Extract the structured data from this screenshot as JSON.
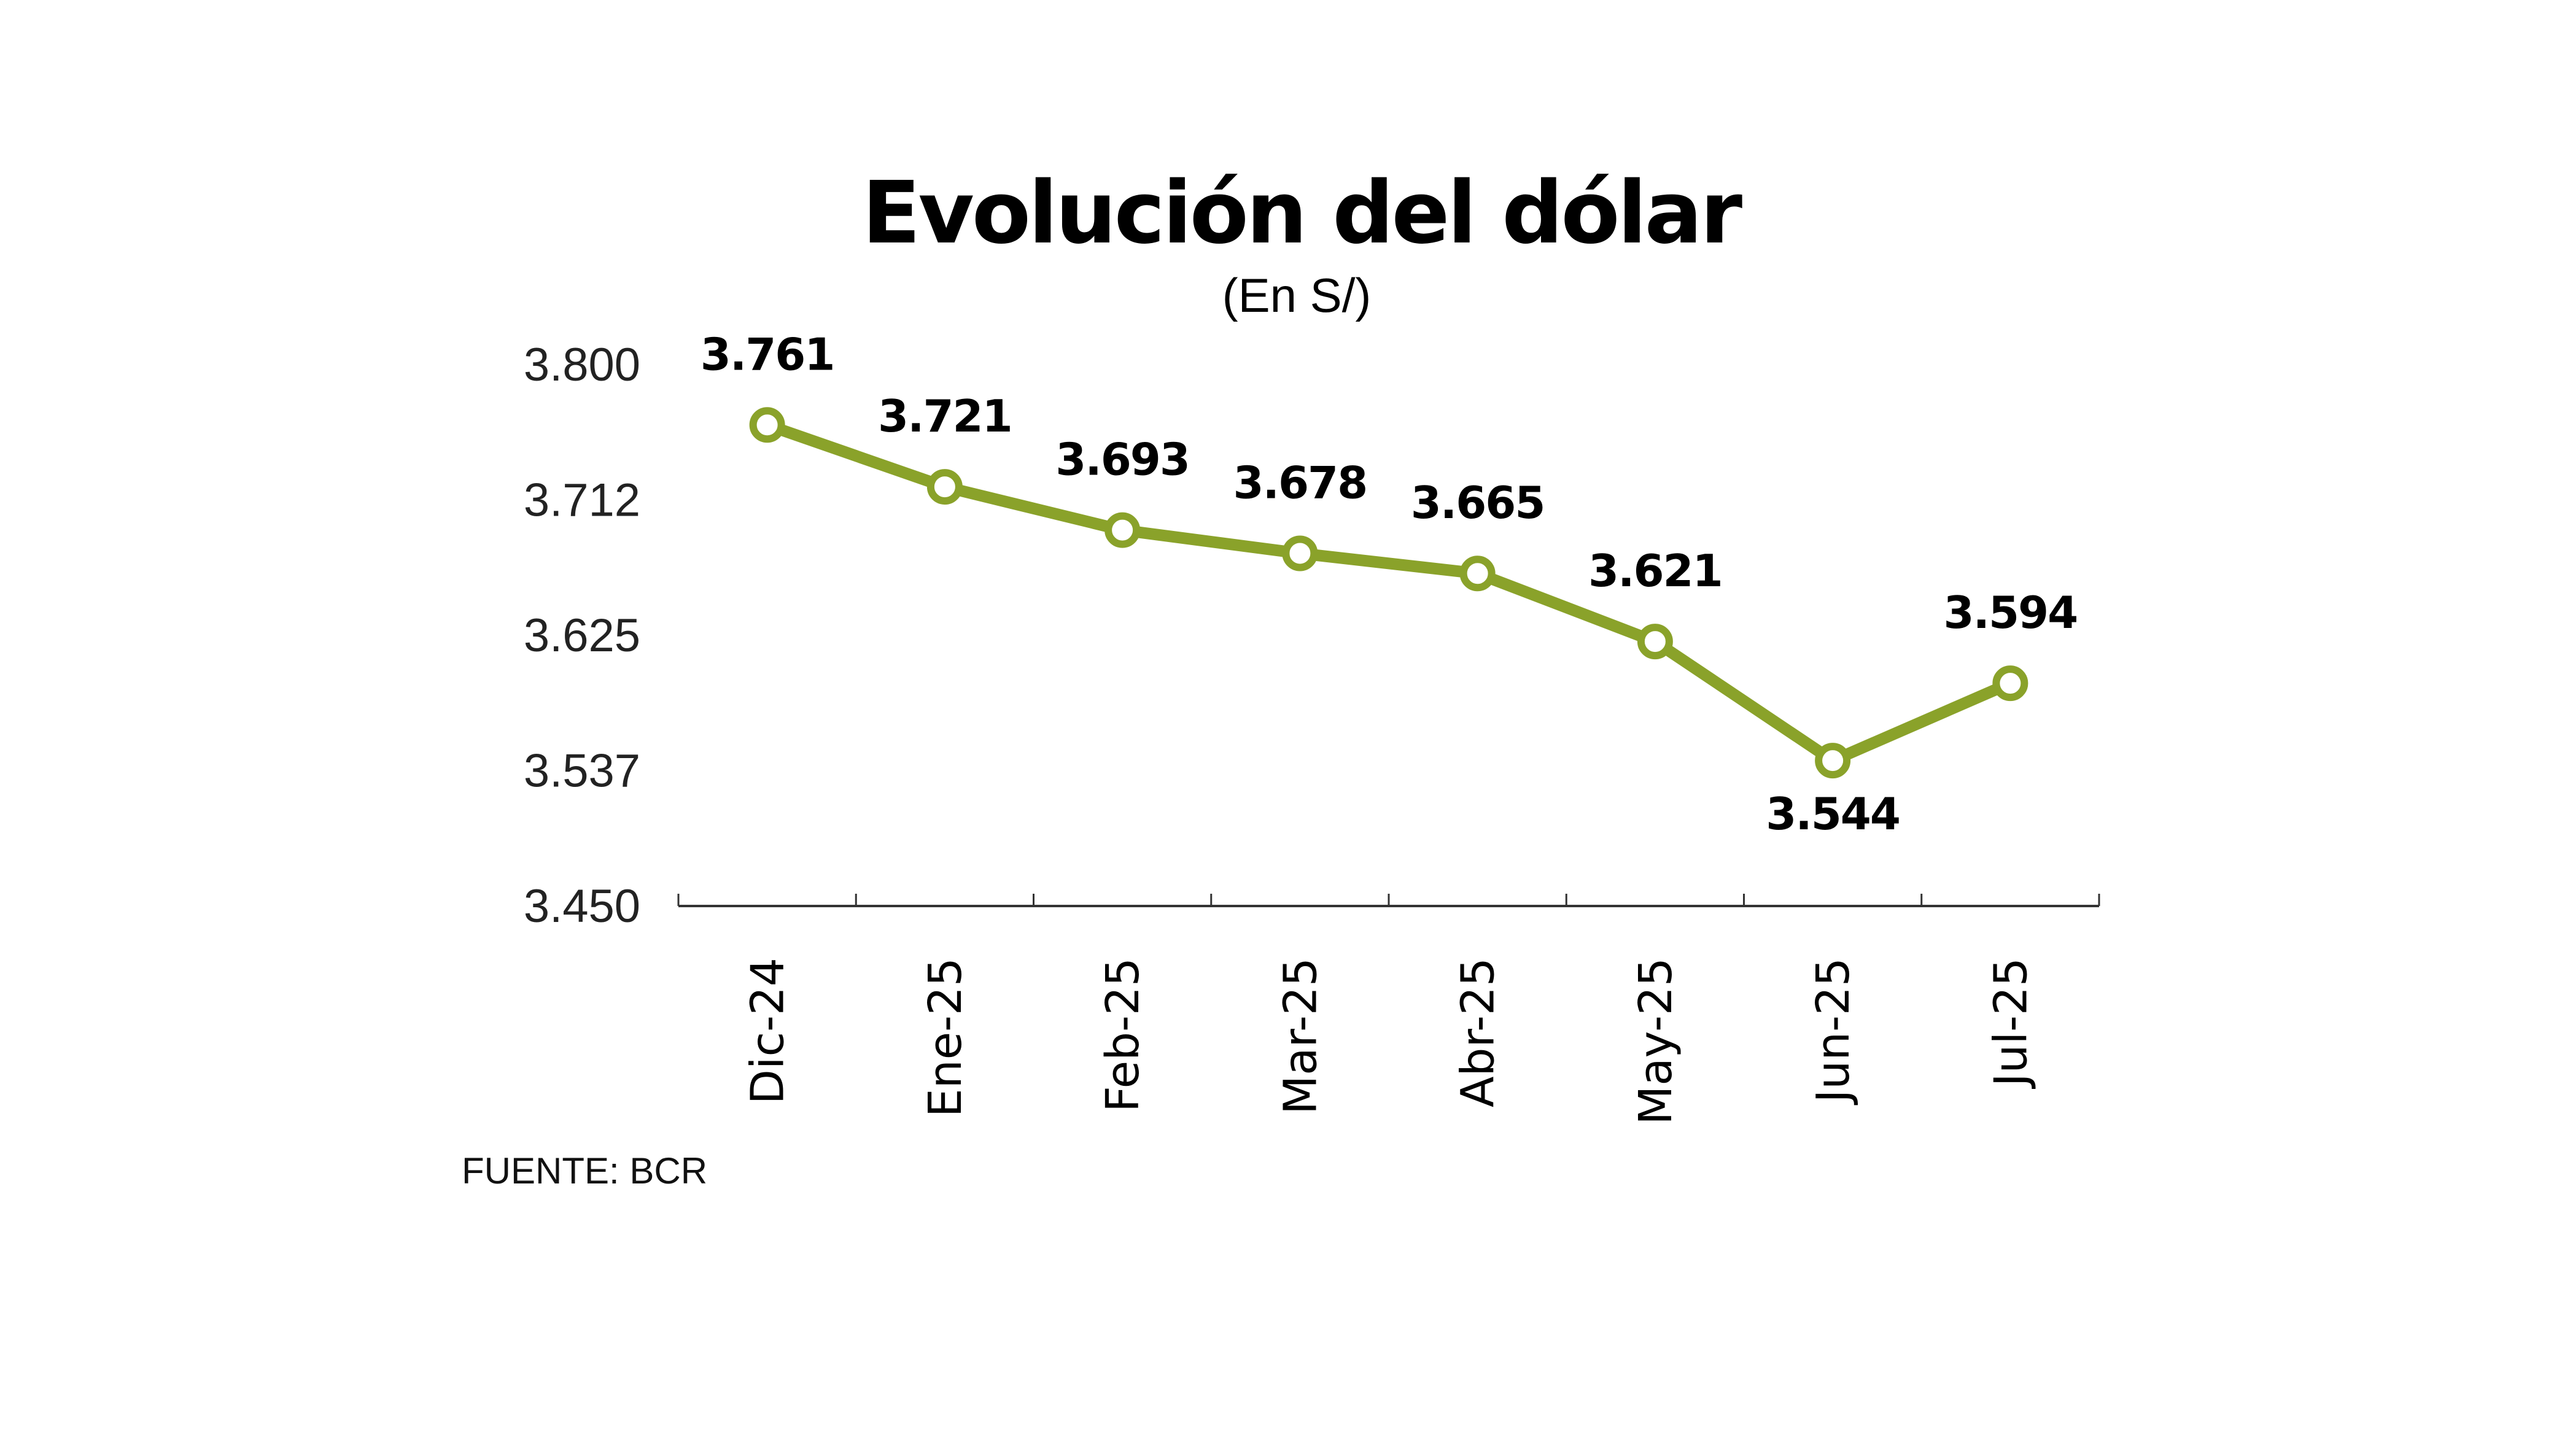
{
  "chart_data": {
    "type": "line",
    "title": "Evolución del dólar",
    "subtitle": "(En S/)",
    "source": "FUENTE: BCR",
    "categories": [
      "Dic-24",
      "Ene-25",
      "Feb-25",
      "Mar-25",
      "Abr-25",
      "May-25",
      "Jun-25",
      "Jul-25"
    ],
    "values": [
      3.761,
      3.721,
      3.693,
      3.678,
      3.665,
      3.621,
      3.544,
      3.594
    ],
    "data_labels": [
      "3.761",
      "3.721",
      "3.693",
      "3.678",
      "3.665",
      "3.621",
      "3.544",
      "3.594"
    ],
    "yticks": [
      "3.800",
      "3.712",
      "3.625",
      "3.537",
      "3.450"
    ],
    "ytick_values": [
      3.8,
      3.7125,
      3.625,
      3.5375,
      3.45
    ],
    "ylim": [
      3.45,
      3.8
    ],
    "xlabel": "",
    "ylabel": "",
    "grid": false,
    "legend": "none",
    "colors": {
      "line": "#8aa22a",
      "marker_fill": "#ffffff",
      "axis": "#333333"
    }
  }
}
